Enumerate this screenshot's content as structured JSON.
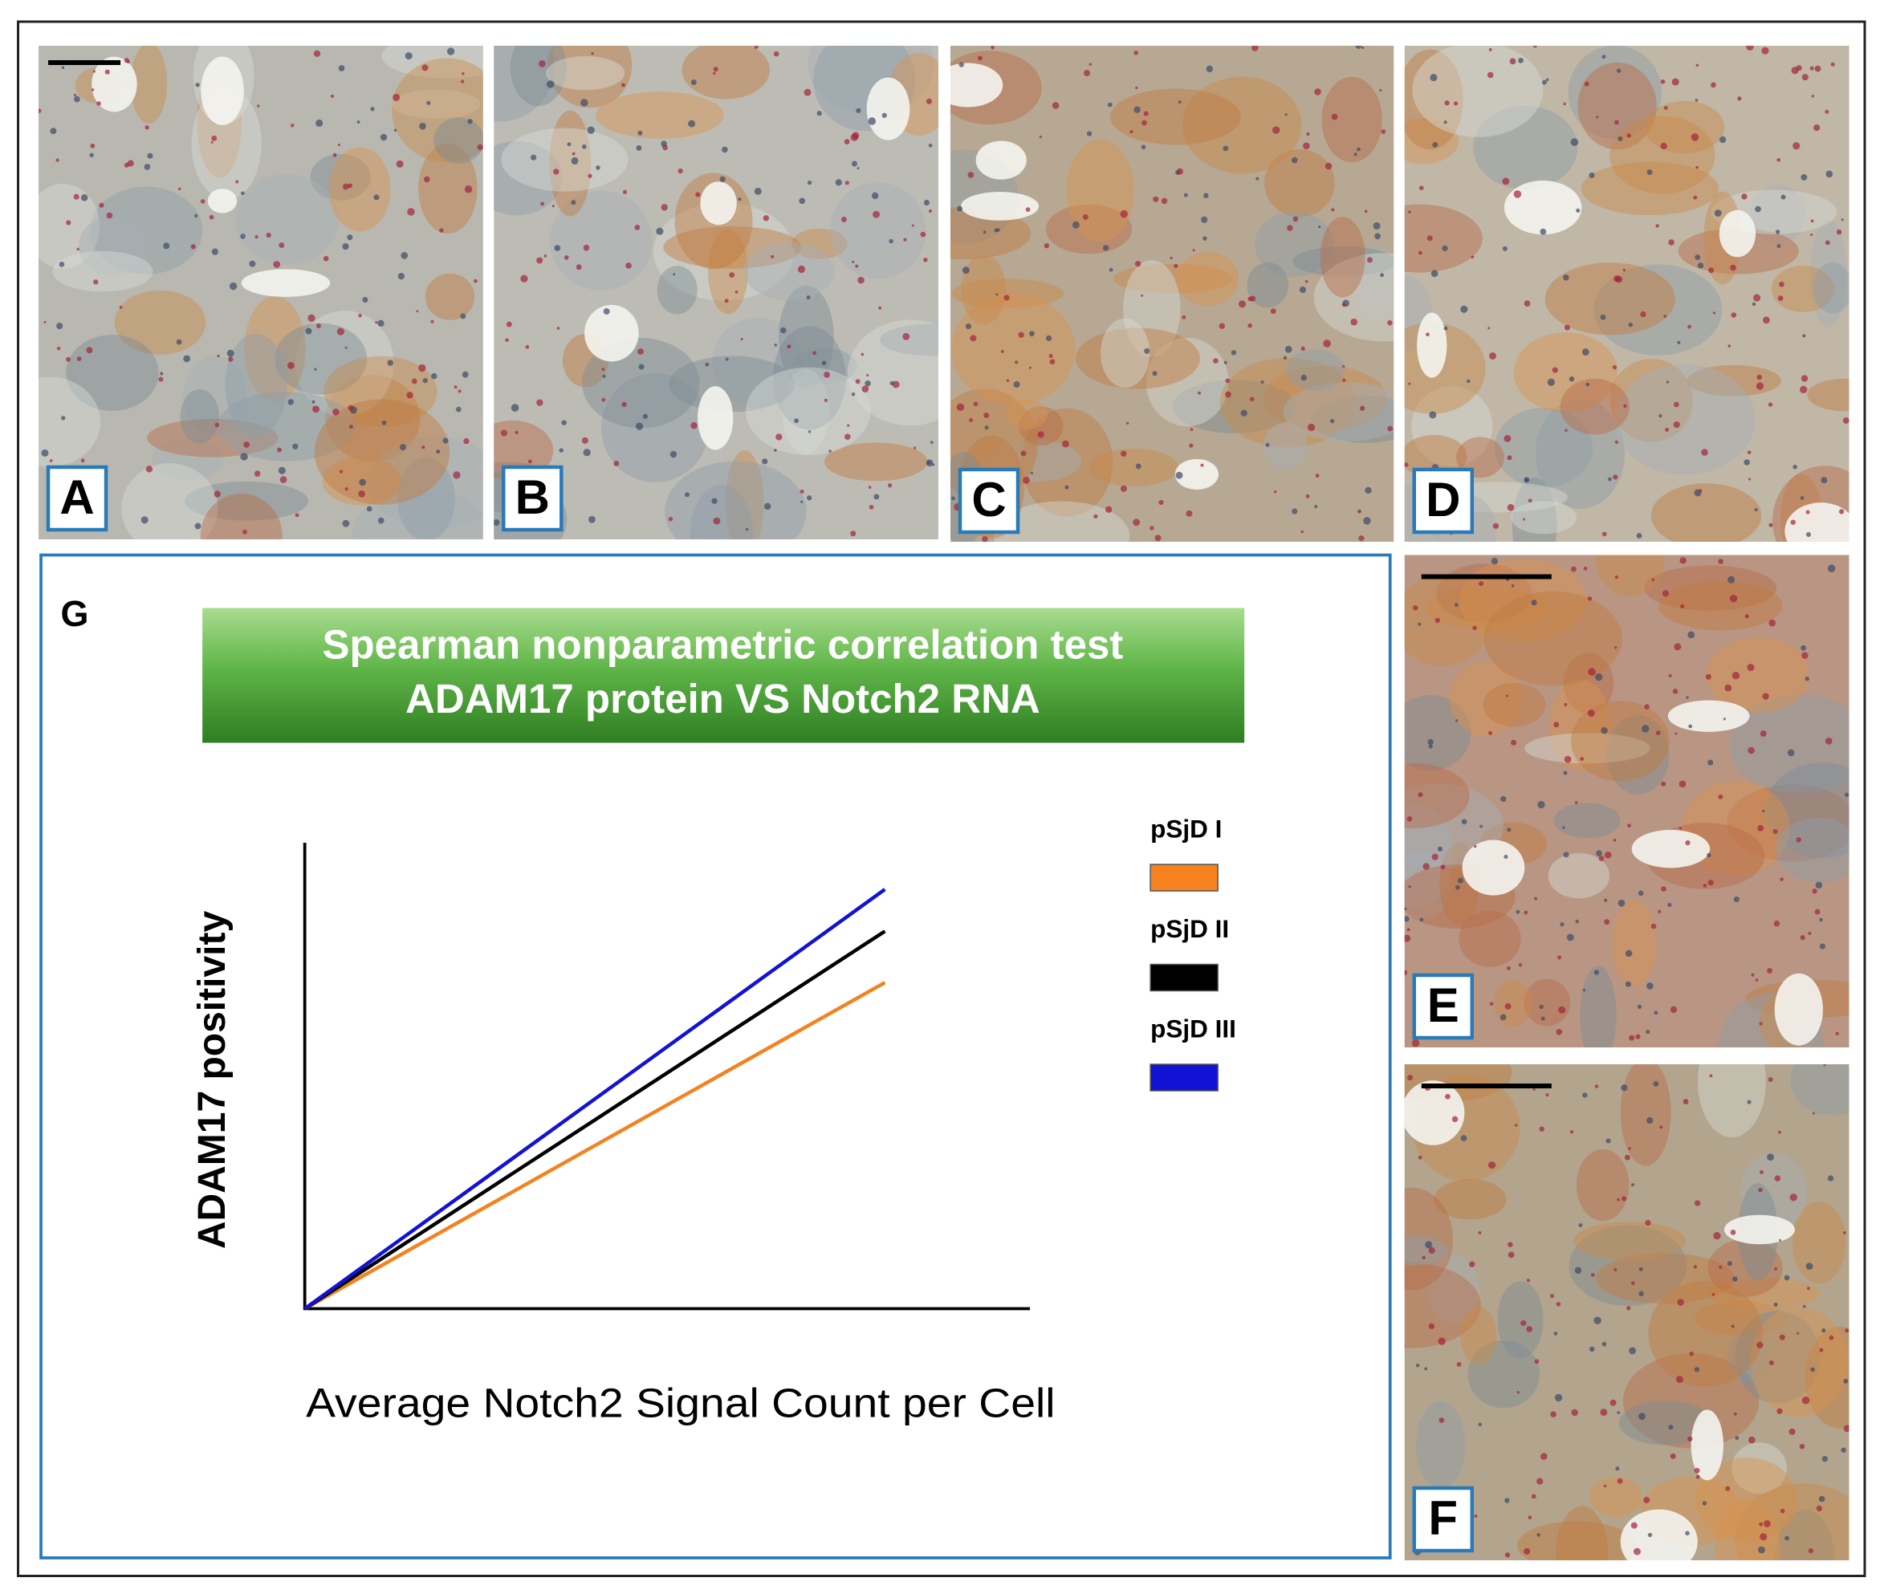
{
  "panels": [
    "A",
    "B",
    "C",
    "D",
    "E",
    "F",
    "G"
  ],
  "chart_data": {
    "type": "line",
    "title": "Spearman nonparametric correlation test",
    "subtitle": "ADAM17 protein VS Notch2 RNA",
    "x_label": "Average Notch2 Signal  Count per Cell",
    "y_label": "ADAM17 positivity",
    "x": [
      0,
      0.8
    ],
    "xlim": [
      0,
      1
    ],
    "ylim": [
      0,
      1
    ],
    "series": [
      {
        "name": "pSjD I",
        "color": "#f5821f",
        "values": [
          0,
          0.7
        ]
      },
      {
        "name": "pSjD II",
        "color": "#000000",
        "values": [
          0,
          0.81
        ]
      },
      {
        "name": "pSjD III",
        "color": "#1212d4",
        "values": [
          0,
          0.9
        ]
      }
    ]
  }
}
